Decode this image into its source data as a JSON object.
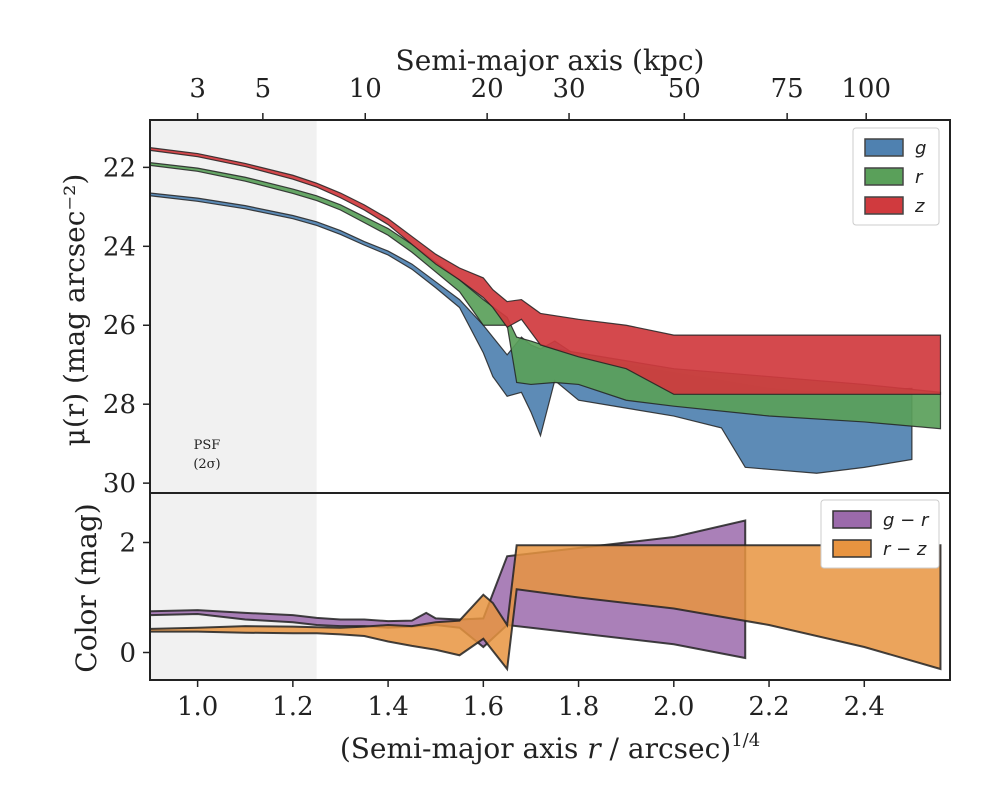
{
  "chart_data": [
    {
      "panel": "top",
      "type": "area",
      "ylabel": "μ(r) (mag arcsec⁻²)",
      "top_xlabel": "Semi-major axis (kpc)",
      "top_ticks": [
        {
          "label": "3",
          "x": 1.0
        },
        {
          "label": "5",
          "x": 1.137
        },
        {
          "label": "10",
          "x": 1.352
        },
        {
          "label": "20",
          "x": 1.608
        },
        {
          "label": "30",
          "x": 1.78
        },
        {
          "label": "50",
          "x": 2.022
        },
        {
          "label": "75",
          "x": 2.238
        },
        {
          "label": "100",
          "x": 2.404
        }
      ],
      "xlim": [
        0.9,
        2.58
      ],
      "ylim": [
        30.25,
        20.8
      ],
      "yticks": [
        22,
        24,
        26,
        28,
        30
      ],
      "psf_shade": {
        "x_end": 1.25,
        "label_line1": "PSF",
        "label_line2": "(2σ)"
      },
      "legend": {
        "position": "upper right"
      },
      "series": [
        {
          "name": "g",
          "color": "#4f81b0",
          "upper": [
            [
              0.9,
              22.65
            ],
            [
              1.0,
              22.78
            ],
            [
              1.1,
              22.97
            ],
            [
              1.2,
              23.22
            ],
            [
              1.25,
              23.38
            ],
            [
              1.3,
              23.6
            ],
            [
              1.35,
              23.88
            ],
            [
              1.4,
              24.12
            ],
            [
              1.45,
              24.45
            ],
            [
              1.5,
              24.9
            ],
            [
              1.55,
              25.35
            ],
            [
              1.6,
              26.0
            ],
            [
              1.62,
              26.3
            ],
            [
              1.65,
              26.75
            ],
            [
              1.68,
              26.3
            ],
            [
              1.7,
              26.5
            ],
            [
              1.72,
              26.6
            ],
            [
              1.75,
              26.4
            ],
            [
              1.8,
              26.8
            ],
            [
              1.9,
              27.0
            ],
            [
              2.0,
              27.2
            ],
            [
              2.1,
              27.4
            ],
            [
              2.2,
              27.6
            ],
            [
              2.3,
              27.7
            ],
            [
              2.4,
              27.65
            ],
            [
              2.5,
              27.6
            ]
          ],
          "lower": [
            [
              0.9,
              22.72
            ],
            [
              1.0,
              22.86
            ],
            [
              1.1,
              23.05
            ],
            [
              1.2,
              23.3
            ],
            [
              1.25,
              23.47
            ],
            [
              1.3,
              23.7
            ],
            [
              1.35,
              23.97
            ],
            [
              1.4,
              24.22
            ],
            [
              1.45,
              24.58
            ],
            [
              1.5,
              25.05
            ],
            [
              1.55,
              25.55
            ],
            [
              1.6,
              26.7
            ],
            [
              1.62,
              27.3
            ],
            [
              1.65,
              27.8
            ],
            [
              1.68,
              27.7
            ],
            [
              1.7,
              28.2
            ],
            [
              1.72,
              28.8
            ],
            [
              1.75,
              27.4
            ],
            [
              1.8,
              27.9
            ],
            [
              1.9,
              28.1
            ],
            [
              2.0,
              28.3
            ],
            [
              2.1,
              28.6
            ],
            [
              2.15,
              29.6
            ],
            [
              2.2,
              29.65
            ],
            [
              2.3,
              29.75
            ],
            [
              2.4,
              29.6
            ],
            [
              2.5,
              29.4
            ]
          ]
        },
        {
          "name": "r",
          "color": "#5aa05a",
          "upper": [
            [
              0.9,
              21.88
            ],
            [
              1.0,
              22.02
            ],
            [
              1.1,
              22.25
            ],
            [
              1.2,
              22.55
            ],
            [
              1.25,
              22.72
            ],
            [
              1.3,
              22.95
            ],
            [
              1.35,
              23.25
            ],
            [
              1.4,
              23.55
            ],
            [
              1.45,
              23.95
            ],
            [
              1.5,
              24.4
            ],
            [
              1.55,
              24.85
            ],
            [
              1.6,
              25.35
            ],
            [
              1.65,
              25.8
            ],
            [
              1.67,
              26.3
            ],
            [
              1.7,
              26.4
            ],
            [
              1.75,
              26.6
            ],
            [
              1.8,
              26.7
            ],
            [
              1.9,
              26.9
            ],
            [
              2.0,
              27.1
            ],
            [
              2.2,
              27.3
            ],
            [
              2.4,
              27.5
            ],
            [
              2.56,
              27.7
            ]
          ],
          "lower": [
            [
              0.9,
              21.95
            ],
            [
              1.0,
              22.1
            ],
            [
              1.1,
              22.35
            ],
            [
              1.2,
              22.66
            ],
            [
              1.25,
              22.84
            ],
            [
              1.3,
              23.08
            ],
            [
              1.35,
              23.4
            ],
            [
              1.4,
              23.72
            ],
            [
              1.45,
              24.15
            ],
            [
              1.5,
              24.65
            ],
            [
              1.55,
              25.15
            ],
            [
              1.6,
              26.0
            ],
            [
              1.65,
              26.0
            ],
            [
              1.67,
              27.45
            ],
            [
              1.7,
              27.5
            ],
            [
              1.75,
              27.45
            ],
            [
              1.8,
              27.5
            ],
            [
              1.9,
              27.9
            ],
            [
              2.0,
              28.05
            ],
            [
              2.2,
              28.3
            ],
            [
              2.4,
              28.45
            ],
            [
              2.56,
              28.62
            ]
          ]
        },
        {
          "name": "z",
          "color": "#d03a3e",
          "upper": [
            [
              0.9,
              21.5
            ],
            [
              1.0,
              21.65
            ],
            [
              1.1,
              21.9
            ],
            [
              1.2,
              22.2
            ],
            [
              1.25,
              22.4
            ],
            [
              1.3,
              22.65
            ],
            [
              1.35,
              22.95
            ],
            [
              1.4,
              23.3
            ],
            [
              1.45,
              23.75
            ],
            [
              1.5,
              24.2
            ],
            [
              1.55,
              24.55
            ],
            [
              1.6,
              24.8
            ],
            [
              1.62,
              25.1
            ],
            [
              1.65,
              25.4
            ],
            [
              1.68,
              25.35
            ],
            [
              1.72,
              25.7
            ],
            [
              1.8,
              25.85
            ],
            [
              1.9,
              26.0
            ],
            [
              2.0,
              26.25
            ],
            [
              2.2,
              26.25
            ],
            [
              2.4,
              26.25
            ],
            [
              2.56,
              26.25
            ]
          ],
          "lower": [
            [
              0.9,
              21.57
            ],
            [
              1.0,
              21.73
            ],
            [
              1.1,
              21.98
            ],
            [
              1.2,
              22.3
            ],
            [
              1.25,
              22.5
            ],
            [
              1.3,
              22.77
            ],
            [
              1.35,
              23.08
            ],
            [
              1.4,
              23.45
            ],
            [
              1.45,
              23.95
            ],
            [
              1.5,
              24.45
            ],
            [
              1.55,
              24.85
            ],
            [
              1.6,
              25.3
            ],
            [
              1.62,
              25.55
            ],
            [
              1.65,
              26.05
            ],
            [
              1.68,
              25.85
            ],
            [
              1.72,
              26.5
            ],
            [
              1.8,
              26.8
            ],
            [
              1.9,
              27.1
            ],
            [
              2.0,
              27.75
            ],
            [
              2.2,
              27.75
            ],
            [
              2.4,
              27.75
            ],
            [
              2.56,
              27.75
            ]
          ]
        }
      ]
    },
    {
      "panel": "bottom",
      "type": "area",
      "ylabel": "Color (mag)",
      "xlabel": "(Semi-major axis r / arcsec)1/4",
      "xlim": [
        0.9,
        2.58
      ],
      "xticks": [
        1.0,
        1.2,
        1.4,
        1.6,
        1.8,
        2.0,
        2.2,
        2.4
      ],
      "xtick_labels": [
        "1.0",
        "1.2",
        "1.4",
        "1.6",
        "1.8",
        "2.0",
        "2.2",
        "2.4"
      ],
      "ylim": [
        -0.5,
        2.9
      ],
      "yticks": [
        0,
        2
      ],
      "legend": {
        "position": "upper right"
      },
      "series": [
        {
          "name": "g − r",
          "color": "#9b6aab",
          "upper": [
            [
              0.9,
              0.75
            ],
            [
              1.0,
              0.77
            ],
            [
              1.1,
              0.72
            ],
            [
              1.2,
              0.68
            ],
            [
              1.25,
              0.63
            ],
            [
              1.3,
              0.6
            ],
            [
              1.35,
              0.6
            ],
            [
              1.4,
              0.57
            ],
            [
              1.45,
              0.58
            ],
            [
              1.48,
              0.72
            ],
            [
              1.5,
              0.62
            ],
            [
              1.55,
              0.6
            ],
            [
              1.6,
              0.62
            ],
            [
              1.65,
              1.75
            ],
            [
              1.7,
              1.8
            ],
            [
              1.8,
              1.9
            ],
            [
              1.9,
              2.0
            ],
            [
              2.0,
              2.1
            ],
            [
              2.15,
              2.4
            ]
          ],
          "lower": [
            [
              0.9,
              0.68
            ],
            [
              1.0,
              0.7
            ],
            [
              1.1,
              0.6
            ],
            [
              1.2,
              0.55
            ],
            [
              1.25,
              0.5
            ],
            [
              1.3,
              0.48
            ],
            [
              1.35,
              0.48
            ],
            [
              1.4,
              0.45
            ],
            [
              1.45,
              0.47
            ],
            [
              1.5,
              0.5
            ],
            [
              1.55,
              0.45
            ],
            [
              1.6,
              0.1
            ],
            [
              1.65,
              0.5
            ],
            [
              1.7,
              0.45
            ],
            [
              1.8,
              0.35
            ],
            [
              1.9,
              0.25
            ],
            [
              2.0,
              0.15
            ],
            [
              2.15,
              -0.1
            ]
          ]
        },
        {
          "name": "r − z",
          "color": "#e89440",
          "upper": [
            [
              0.9,
              0.43
            ],
            [
              1.0,
              0.45
            ],
            [
              1.1,
              0.48
            ],
            [
              1.2,
              0.47
            ],
            [
              1.25,
              0.46
            ],
            [
              1.3,
              0.45
            ],
            [
              1.35,
              0.47
            ],
            [
              1.4,
              0.5
            ],
            [
              1.45,
              0.48
            ],
            [
              1.5,
              0.55
            ],
            [
              1.55,
              0.58
            ],
            [
              1.6,
              1.05
            ],
            [
              1.62,
              0.9
            ],
            [
              1.65,
              0.5
            ],
            [
              1.67,
              1.95
            ],
            [
              1.8,
              1.95
            ],
            [
              2.0,
              1.95
            ],
            [
              2.2,
              1.95
            ],
            [
              2.4,
              1.95
            ],
            [
              2.56,
              1.95
            ]
          ],
          "lower": [
            [
              0.9,
              0.38
            ],
            [
              1.0,
              0.38
            ],
            [
              1.1,
              0.36
            ],
            [
              1.2,
              0.35
            ],
            [
              1.25,
              0.35
            ],
            [
              1.3,
              0.33
            ],
            [
              1.35,
              0.3
            ],
            [
              1.4,
              0.2
            ],
            [
              1.45,
              0.12
            ],
            [
              1.5,
              0.05
            ],
            [
              1.55,
              -0.05
            ],
            [
              1.6,
              0.25
            ],
            [
              1.65,
              -0.3
            ],
            [
              1.67,
              1.15
            ],
            [
              1.8,
              1.0
            ],
            [
              2.0,
              0.8
            ],
            [
              2.2,
              0.5
            ],
            [
              2.4,
              0.1
            ],
            [
              2.56,
              -0.3
            ]
          ]
        }
      ]
    }
  ]
}
